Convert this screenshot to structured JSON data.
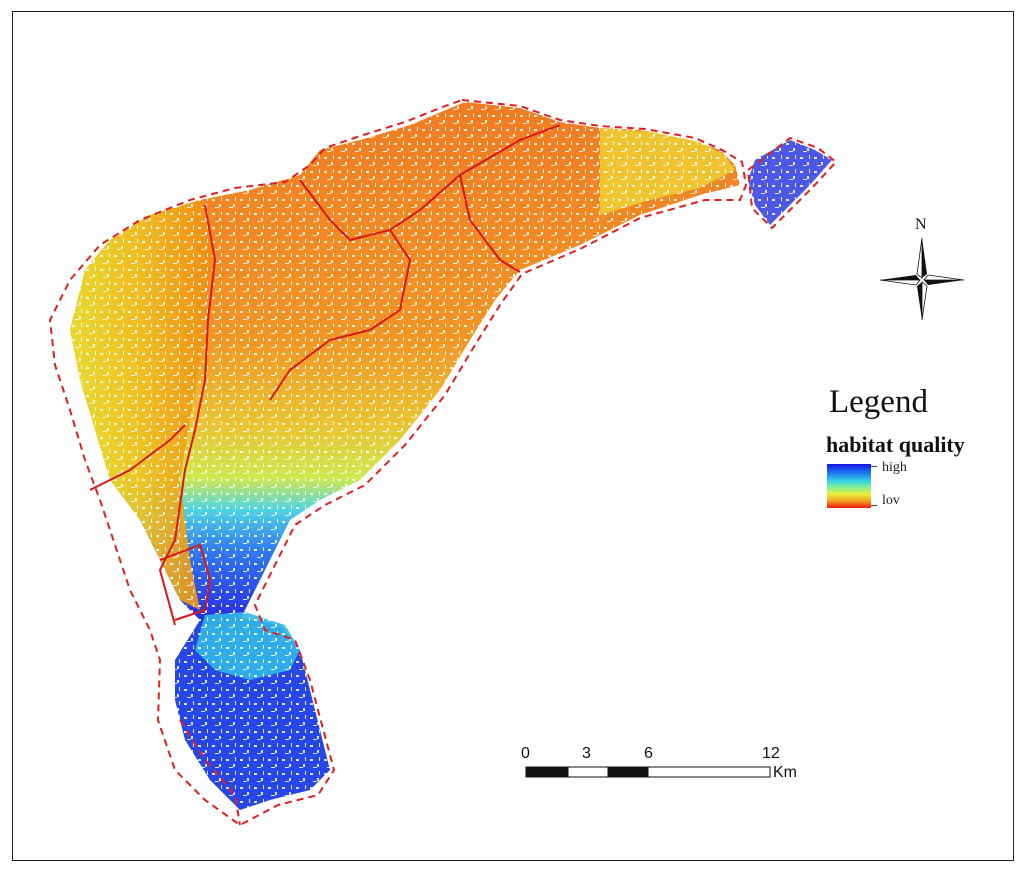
{
  "legend": {
    "title": "Legend",
    "subtitle": "habitat quality",
    "high_label": "high",
    "low_label": "lov",
    "ramp_colors": [
      "#1414e0",
      "#1e6cf0",
      "#34d0e6",
      "#7df09a",
      "#e6f040",
      "#f5a020",
      "#f01414"
    ]
  },
  "north_arrow": {
    "label": "N"
  },
  "scale_bar": {
    "ticks": [
      "0",
      "3",
      "6",
      "12"
    ],
    "unit": "Km"
  },
  "colors": {
    "boundary": "#e02020",
    "high_quality": "#1414e0",
    "low_quality": "#f01414",
    "mid_orange": "#f08c10",
    "mid_yellow": "#e8d820"
  }
}
